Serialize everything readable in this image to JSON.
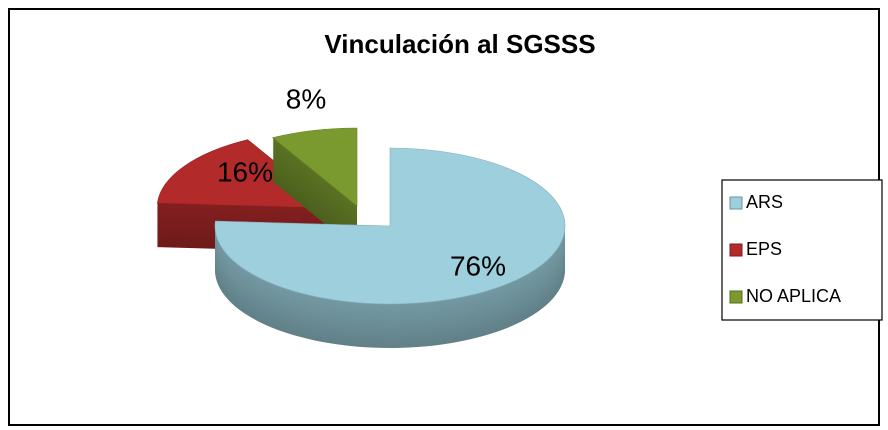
{
  "chart_data": {
    "type": "pie",
    "title": "Vinculación al SGSSS",
    "categories": [
      "ARS",
      "EPS",
      "NO APLICA"
    ],
    "values": [
      76,
      16,
      8
    ],
    "value_labels": [
      "76%",
      "16%",
      "8%"
    ],
    "colors": [
      "#9dcfdc",
      "#b22a2a",
      "#7a9a2f"
    ],
    "legend": "right"
  }
}
